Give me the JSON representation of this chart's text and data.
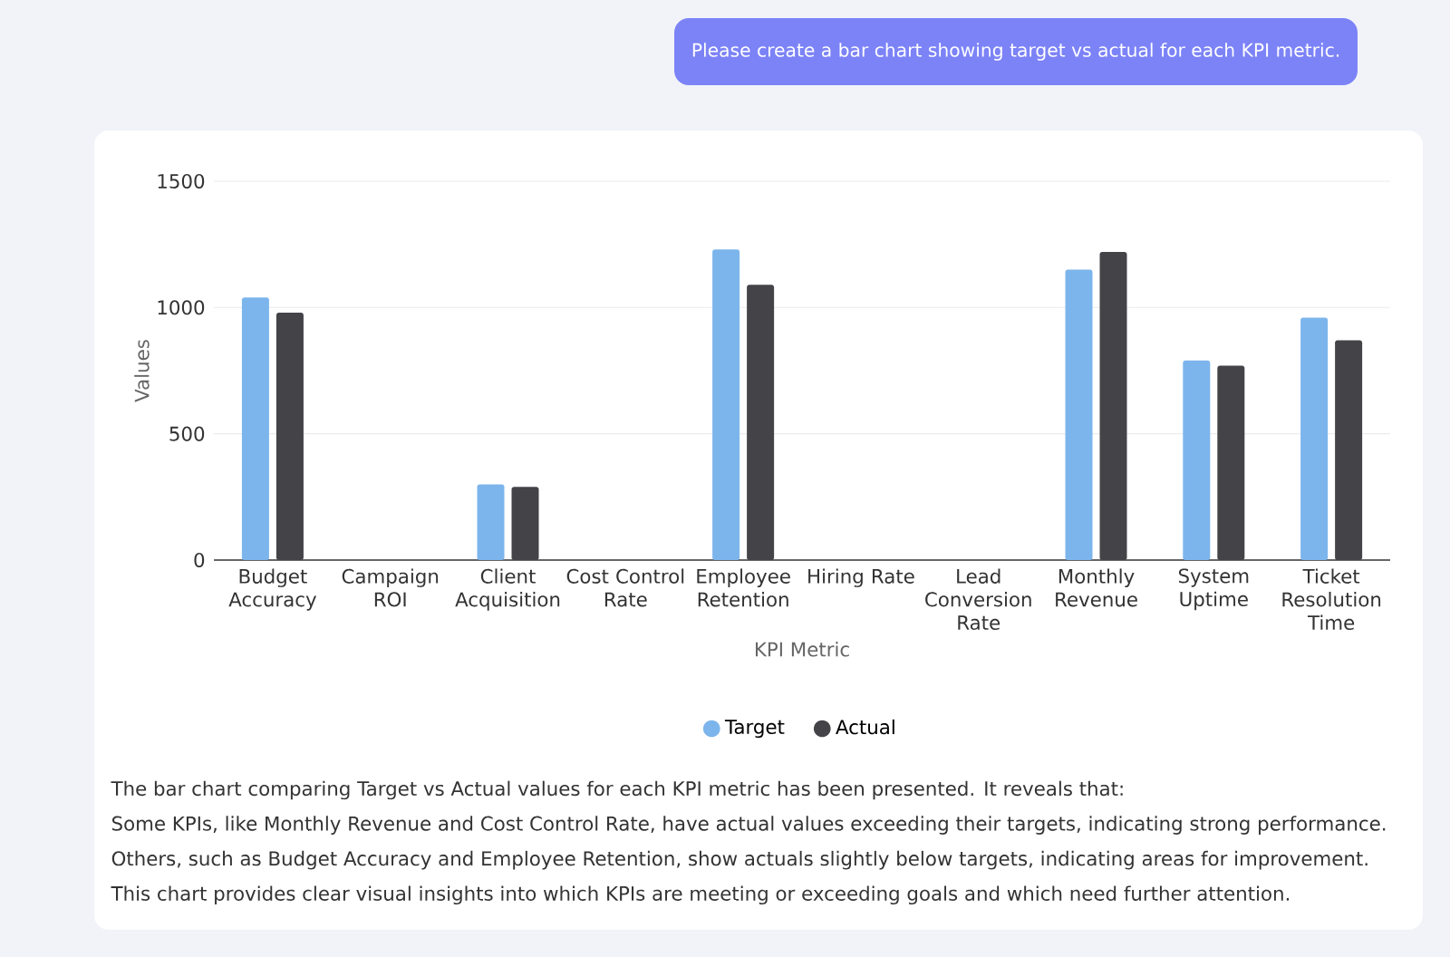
{
  "chart_data": {
    "type": "bar",
    "xlabel": "KPI Metric",
    "ylabel": "Values",
    "categories": [
      "Budget Accuracy",
      "Campaign ROI",
      "Client Acquisition",
      "Cost Control Rate",
      "Employee Retention",
      "Hiring Rate",
      "Lead Conversion Rate",
      "Monthly Revenue",
      "System Uptime",
      "Ticket Resolution Time"
    ],
    "series": [
      {
        "name": "Target",
        "color": "#7cb5ec",
        "values": [
          1040,
          0,
          300,
          0,
          1230,
          0,
          0,
          1150,
          790,
          960
        ]
      },
      {
        "name": "Actual",
        "color": "#434348",
        "values": [
          980,
          0,
          290,
          0,
          1090,
          0,
          0,
          1220,
          770,
          870
        ]
      }
    ],
    "ylim": [
      0,
      1500
    ],
    "yticks": [
      0,
      500,
      1000,
      1500
    ],
    "grid": "y",
    "legend": "bottom",
    "annotations": [
      "Please create a bar chart showing target vs actual for each KPI metric.",
      "The bar chart comparing Target vs Actual values for each KPI metric has been presented. It reveals that:",
      "Some KPIs, like Monthly Revenue and Cost Control Rate, have actual values exceeding their targets, indicating strong performance.",
      "Others, such as Budget Accuracy and Employee Retention, show actuals slightly below targets, indicating areas for improvement.",
      "This chart provides clear visual insights into which KPIs are meeting or exceeding goals and which need further attention."
    ]
  }
}
